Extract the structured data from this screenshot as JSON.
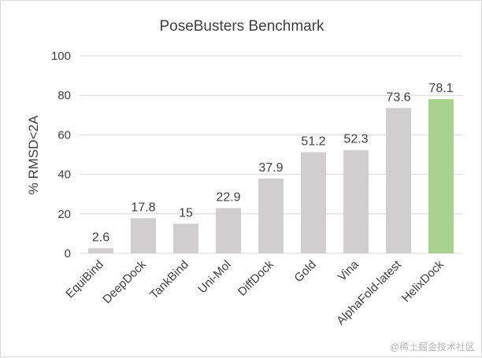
{
  "chart_data": {
    "type": "bar",
    "title": "PoseBusters Benchmark",
    "xlabel": "",
    "ylabel": "% RMSD<2A",
    "ylim": [
      0,
      100
    ],
    "yticks": [
      0,
      20,
      40,
      60,
      80,
      100
    ],
    "grid": true,
    "legend": "none",
    "categories": [
      "EquiBind",
      "DeepDock",
      "TankBind",
      "Uni-Mol",
      "DiffDock",
      "Gold",
      "Vina",
      "AlphaFold-latest",
      "HelixDock"
    ],
    "values": [
      2.6,
      17.8,
      15,
      22.9,
      37.9,
      51.2,
      52.3,
      73.6,
      78.1
    ],
    "value_labels": [
      "2.6",
      "17.8",
      "15",
      "22.9",
      "37.9",
      "51.2",
      "52.3",
      "73.6",
      "78.1"
    ],
    "colors": {
      "default_bar": "#d0cece",
      "highlight_bar": "#a9d18e",
      "grid": "#d9d9d9",
      "text": "#404040"
    },
    "highlight_category": "HelixDock"
  },
  "watermark": "@稀土掘金技术社区"
}
